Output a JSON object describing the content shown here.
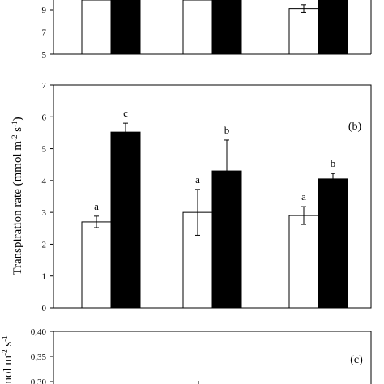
{
  "chart_data": [
    {
      "type": "bar",
      "panel_label": "",
      "ylabel": "",
      "ylim": [
        5,
        10
      ],
      "yticks": [
        5,
        7,
        9
      ],
      "categories": [
        "",
        "",
        ""
      ],
      "series": [
        {
          "name": "",
          "color": "#ffffff",
          "values": [
            10.5,
            10.5,
            9.1
          ],
          "errors": [
            0,
            0,
            0.35
          ],
          "letters": [
            "",
            "",
            ""
          ]
        },
        {
          "name": "",
          "color": "#000000",
          "values": [
            10.5,
            10.5,
            10.5
          ],
          "errors": [
            0,
            0,
            0
          ],
          "letters": [
            "",
            "",
            ""
          ]
        }
      ]
    },
    {
      "type": "bar",
      "panel_label": "(b)",
      "ylabel": "Transpiration rate (mmol m-2 s-1)",
      "ylim": [
        0,
        7
      ],
      "yticks": [
        0,
        1,
        2,
        3,
        4,
        5,
        6,
        7
      ],
      "categories": [
        "",
        "",
        ""
      ],
      "series": [
        {
          "name": "",
          "color": "#ffffff",
          "values": [
            2.7,
            3.0,
            2.9
          ],
          "errors": [
            0.18,
            0.72,
            0.28
          ],
          "letters": [
            "a",
            "a",
            "a"
          ]
        },
        {
          "name": "",
          "color": "#000000",
          "values": [
            5.52,
            4.3,
            4.05
          ],
          "errors": [
            0.28,
            0.97,
            0.17
          ],
          "letters": [
            "c",
            "b",
            "b"
          ]
        }
      ]
    },
    {
      "type": "bar",
      "panel_label": "(c)",
      "ylabel": "mol m-2 s-1",
      "ylim": [
        0.25,
        0.4
      ],
      "yticks": [
        "0,40",
        "0,35",
        "0,30"
      ],
      "categories": [
        "",
        "",
        ""
      ],
      "series": []
    }
  ]
}
